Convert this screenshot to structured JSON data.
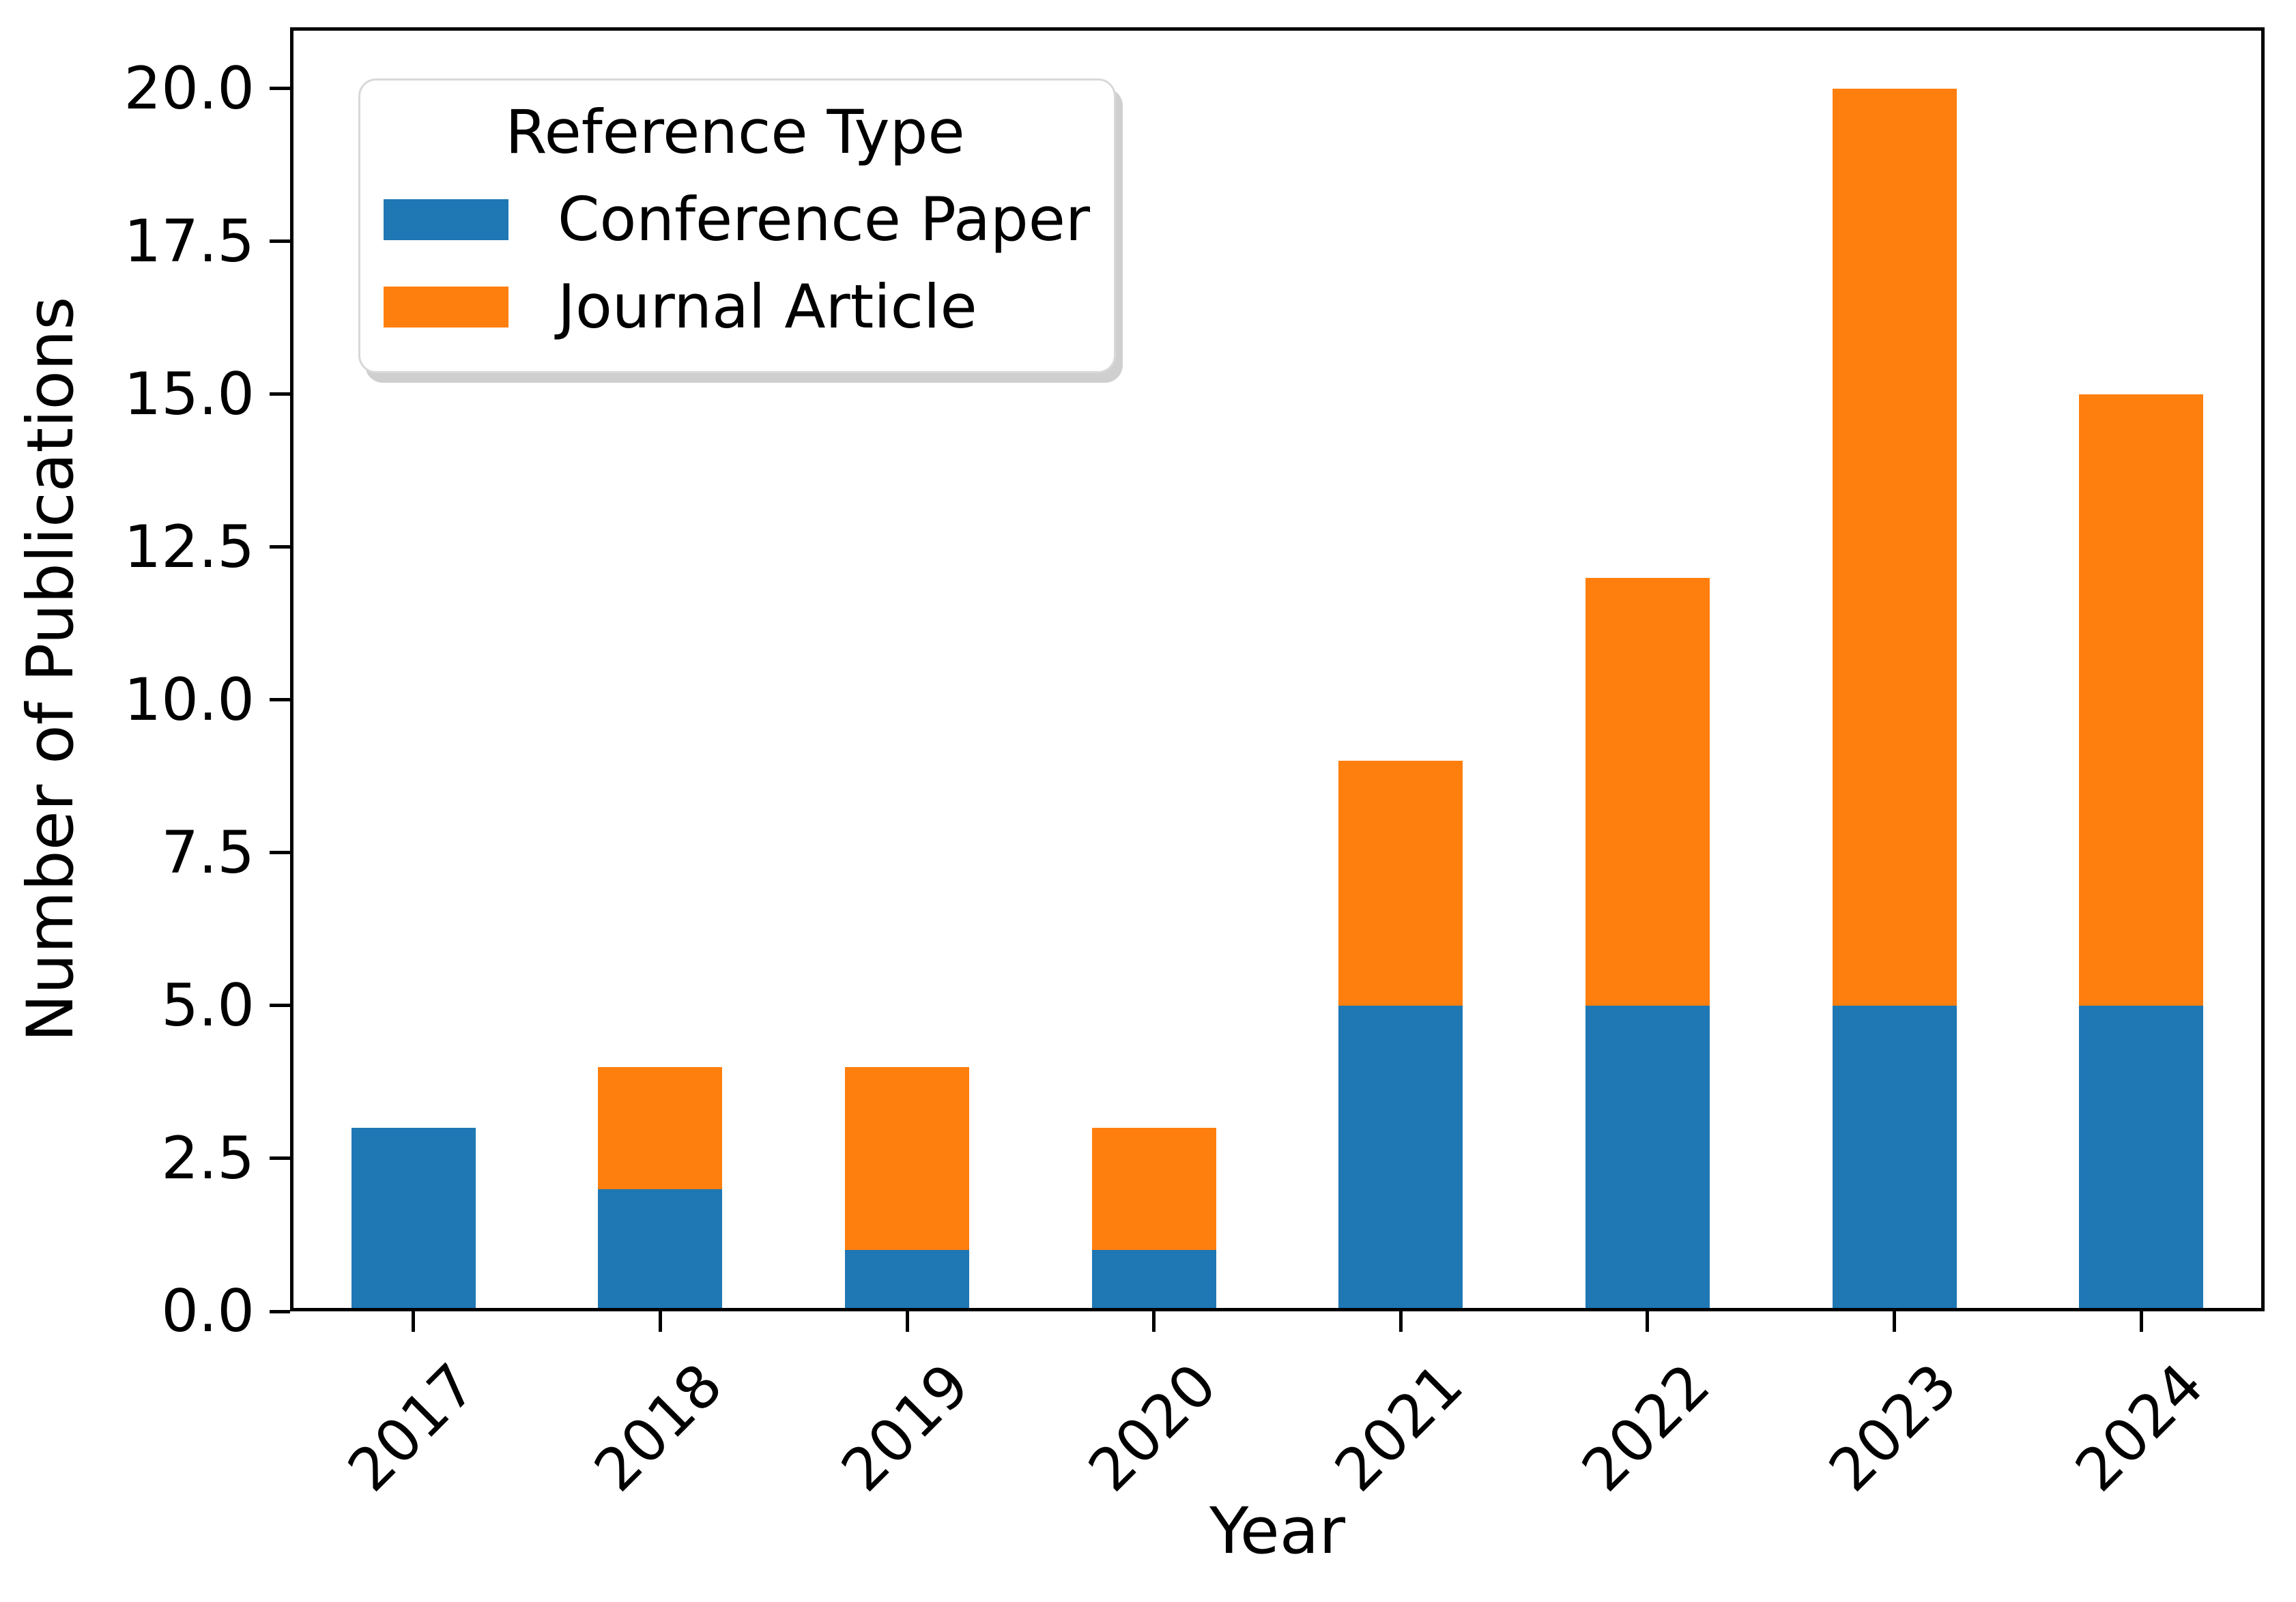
{
  "chart_data": {
    "type": "bar",
    "stacked": true,
    "title": "",
    "xlabel": "Year",
    "ylabel": "Number of Publications",
    "categories": [
      "2017",
      "2018",
      "2019",
      "2020",
      "2021",
      "2022",
      "2023",
      "2024"
    ],
    "series": [
      {
        "name": "Conference Paper",
        "color": "#1f77b4",
        "values": [
          3,
          2,
          1,
          1,
          5,
          5,
          5,
          5
        ]
      },
      {
        "name": "Journal Article",
        "color": "#ff7f0e",
        "values": [
          0,
          2,
          3,
          2,
          4,
          7,
          15,
          10
        ]
      }
    ],
    "totals": [
      3,
      4,
      4,
      3,
      9,
      12,
      20,
      15
    ],
    "legend_title": "Reference Type",
    "legend_position": "upper left",
    "ylim": [
      0,
      21
    ],
    "yticks": [
      0.0,
      2.5,
      5.0,
      7.5,
      10.0,
      12.5,
      15.0,
      17.5,
      20.0
    ],
    "ytick_labels": [
      "0.0",
      "2.5",
      "5.0",
      "7.5",
      "10.0",
      "12.5",
      "15.0",
      "17.5",
      "20.0"
    ],
    "xtick_rotation_deg": 45,
    "grid": false,
    "background_color": "#ffffff",
    "axis_color": "#000000"
  }
}
